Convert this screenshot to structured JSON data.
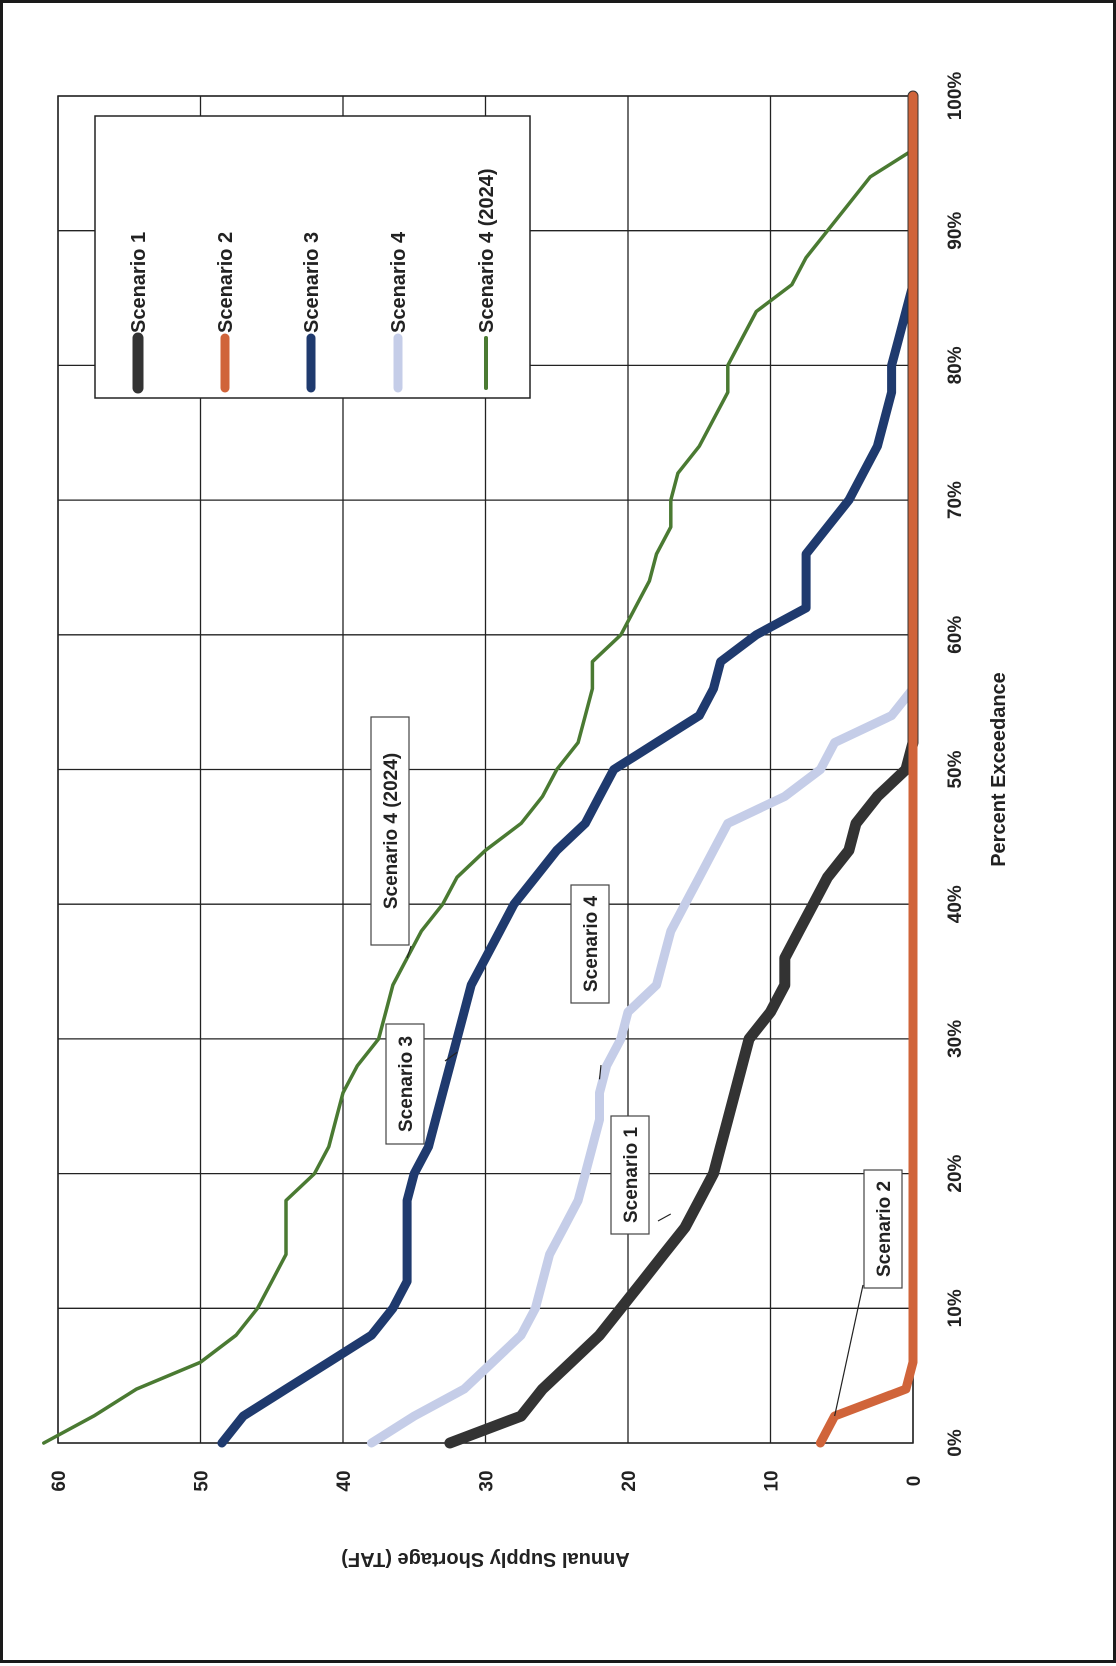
{
  "chart_data": {
    "type": "line",
    "orientation": "rotated-90-clockwise",
    "title": "",
    "xlabel": "Percent Exceedance",
    "ylabel": "Annual Supply Shortage (TAF)",
    "xlim": [
      0,
      100
    ],
    "ylim": [
      0,
      60
    ],
    "x_ticks": [
      "0%",
      "10%",
      "20%",
      "30%",
      "40%",
      "50%",
      "60%",
      "70%",
      "80%",
      "90%",
      "100%"
    ],
    "y_ticks": [
      "0",
      "10",
      "20",
      "30",
      "40",
      "50",
      "60"
    ],
    "grid": true,
    "legend_position": "top-right",
    "series": [
      {
        "name": "Scenario 1",
        "color": "#333333",
        "width": 11,
        "points": [
          [
            0,
            32.5
          ],
          [
            2,
            27.5
          ],
          [
            4,
            26
          ],
          [
            6,
            24
          ],
          [
            8,
            22
          ],
          [
            10,
            20.5
          ],
          [
            12,
            19
          ],
          [
            14,
            17.5
          ],
          [
            16,
            16
          ],
          [
            18,
            15
          ],
          [
            20,
            14
          ],
          [
            22,
            13.5
          ],
          [
            24,
            13
          ],
          [
            26,
            12.5
          ],
          [
            28,
            12
          ],
          [
            30,
            11.5
          ],
          [
            32,
            10
          ],
          [
            34,
            9
          ],
          [
            36,
            9
          ],
          [
            38,
            8
          ],
          [
            40,
            7
          ],
          [
            42,
            6
          ],
          [
            44,
            4.5
          ],
          [
            46,
            4
          ],
          [
            48,
            2.5
          ],
          [
            50,
            0.5
          ],
          [
            52,
            0
          ],
          [
            100,
            0
          ]
        ]
      },
      {
        "name": "Scenario 2",
        "color": "#d0643a",
        "width": 9,
        "points": [
          [
            0,
            6.5
          ],
          [
            2,
            5.5
          ],
          [
            4,
            0.5
          ],
          [
            6,
            0
          ],
          [
            100,
            0
          ]
        ]
      },
      {
        "name": "Scenario 3",
        "color": "#1f3a6e",
        "width": 9,
        "points": [
          [
            0,
            48.5
          ],
          [
            2,
            47
          ],
          [
            4,
            44
          ],
          [
            6,
            41
          ],
          [
            8,
            38
          ],
          [
            10,
            36.5
          ],
          [
            12,
            35.5
          ],
          [
            14,
            35.5
          ],
          [
            16,
            35.5
          ],
          [
            18,
            35.5
          ],
          [
            20,
            35
          ],
          [
            22,
            34
          ],
          [
            24,
            33.5
          ],
          [
            26,
            33
          ],
          [
            28,
            32.5
          ],
          [
            30,
            32
          ],
          [
            32,
            31.5
          ],
          [
            34,
            31
          ],
          [
            36,
            30
          ],
          [
            38,
            29
          ],
          [
            40,
            28
          ],
          [
            42,
            26.5
          ],
          [
            44,
            25
          ],
          [
            46,
            23
          ],
          [
            48,
            22
          ],
          [
            50,
            21
          ],
          [
            52,
            18
          ],
          [
            54,
            15
          ],
          [
            56,
            14
          ],
          [
            58,
            13.5
          ],
          [
            60,
            11
          ],
          [
            62,
            7.5
          ],
          [
            64,
            7.5
          ],
          [
            66,
            7.5
          ],
          [
            68,
            6
          ],
          [
            70,
            4.5
          ],
          [
            72,
            3.5
          ],
          [
            74,
            2.5
          ],
          [
            76,
            2
          ],
          [
            78,
            1.5
          ],
          [
            80,
            1.5
          ],
          [
            82,
            1
          ],
          [
            84,
            0.5
          ],
          [
            86,
            0
          ],
          [
            100,
            0
          ]
        ]
      },
      {
        "name": "Scenario 4",
        "color": "#c5cde8",
        "width": 9,
        "points": [
          [
            0,
            38
          ],
          [
            2,
            35
          ],
          [
            4,
            31.5
          ],
          [
            6,
            29.5
          ],
          [
            8,
            27.5
          ],
          [
            10,
            26.5
          ],
          [
            12,
            26
          ],
          [
            14,
            25.5
          ],
          [
            16,
            24.5
          ],
          [
            18,
            23.5
          ],
          [
            20,
            23
          ],
          [
            22,
            22.5
          ],
          [
            24,
            22
          ],
          [
            26,
            22
          ],
          [
            28,
            21.5
          ],
          [
            30,
            20.5
          ],
          [
            32,
            20
          ],
          [
            34,
            18
          ],
          [
            36,
            17.5
          ],
          [
            38,
            17
          ],
          [
            40,
            16
          ],
          [
            42,
            15
          ],
          [
            44,
            14
          ],
          [
            46,
            13
          ],
          [
            48,
            9
          ],
          [
            50,
            6.5
          ],
          [
            52,
            5.5
          ],
          [
            54,
            1.5
          ],
          [
            56,
            0
          ],
          [
            100,
            0
          ]
        ]
      },
      {
        "name": "Scenario 4 (2024)",
        "color": "#4a7a32",
        "width": 3.5,
        "points": [
          [
            0,
            61
          ],
          [
            2,
            57.5
          ],
          [
            4,
            54.5
          ],
          [
            6,
            50
          ],
          [
            8,
            47.5
          ],
          [
            10,
            46
          ],
          [
            12,
            45
          ],
          [
            14,
            44
          ],
          [
            16,
            44
          ],
          [
            18,
            44
          ],
          [
            20,
            42
          ],
          [
            22,
            41
          ],
          [
            24,
            40.5
          ],
          [
            26,
            40
          ],
          [
            28,
            39
          ],
          [
            30,
            37.5
          ],
          [
            32,
            37
          ],
          [
            34,
            36.5
          ],
          [
            36,
            35.5
          ],
          [
            38,
            34.5
          ],
          [
            40,
            33
          ],
          [
            42,
            32
          ],
          [
            44,
            30
          ],
          [
            46,
            27.5
          ],
          [
            48,
            26
          ],
          [
            50,
            25
          ],
          [
            52,
            23.5
          ],
          [
            54,
            23
          ],
          [
            56,
            22.5
          ],
          [
            58,
            22.5
          ],
          [
            60,
            20.5
          ],
          [
            62,
            19.5
          ],
          [
            64,
            18.5
          ],
          [
            66,
            18
          ],
          [
            68,
            17
          ],
          [
            70,
            17
          ],
          [
            72,
            16.5
          ],
          [
            74,
            15
          ],
          [
            76,
            14
          ],
          [
            78,
            13
          ],
          [
            80,
            13
          ],
          [
            82,
            12
          ],
          [
            84,
            11
          ],
          [
            86,
            8.5
          ],
          [
            88,
            7.5
          ],
          [
            90,
            6
          ],
          [
            92,
            4.5
          ],
          [
            94,
            3
          ],
          [
            96,
            0
          ],
          [
            100,
            0
          ]
        ]
      }
    ],
    "annotations": [
      {
        "text": "Scenario 4 (2024)",
        "x": 36,
        "y": 35.5
      },
      {
        "text": "Scenario 3",
        "x": 29,
        "y": 32
      },
      {
        "text": "Scenario 4",
        "x": 27,
        "y": 22
      },
      {
        "text": "Scenario 1",
        "x": 17,
        "y": 17
      },
      {
        "text": "Scenario 2",
        "x": 2,
        "y": 5.5
      }
    ]
  }
}
